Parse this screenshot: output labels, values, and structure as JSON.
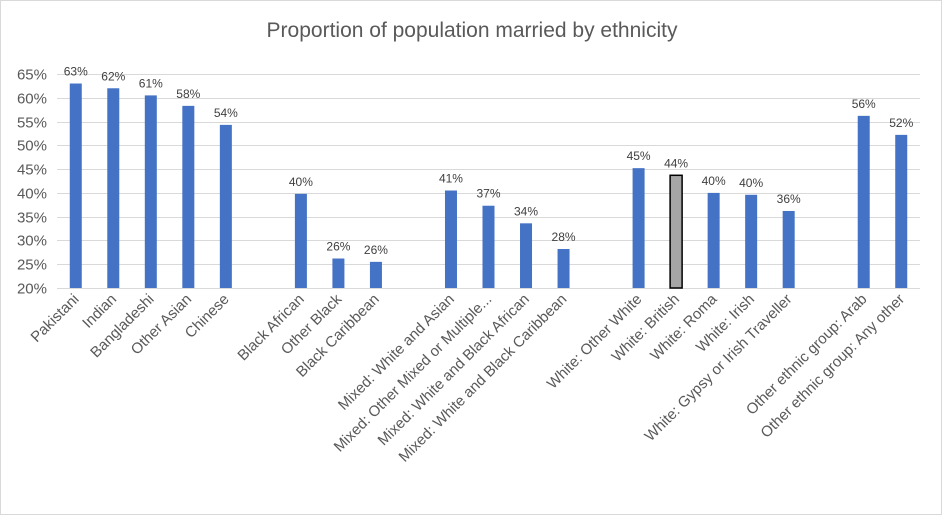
{
  "chart_data": {
    "type": "bar",
    "title": "Proportion of population married by ethnicity",
    "xlabel": "",
    "ylabel": "",
    "ylim": [
      0.2,
      0.65
    ],
    "ytick_values": [
      0.2,
      0.25,
      0.3,
      0.35,
      0.4,
      0.45,
      0.5,
      0.55,
      0.6,
      0.65
    ],
    "ytick_labels": [
      "20%",
      "25%",
      "30%",
      "35%",
      "40%",
      "45%",
      "50%",
      "55%",
      "60%",
      "65%"
    ],
    "grid": true,
    "legend": "none",
    "categories": [
      "Pakistani",
      "Indian",
      "Bangladeshi",
      "Other Asian",
      "Chinese",
      "",
      "Black African",
      "Other Black",
      "Black Caribbean",
      "",
      "Mixed: White and Asian",
      "Mixed: Other Mixed or Multiple...",
      "Mixed: White and Black African",
      "Mixed: White and Black Caribbean",
      "",
      "White: Other White",
      "White: British",
      "White: Roma",
      "White: Irish",
      "White: Gypsy or Irish Traveller",
      "",
      "Other ethnic group: Arab",
      "Other ethnic group: Any other"
    ],
    "values": [
      0.63,
      0.62,
      0.605,
      0.583,
      0.543,
      null,
      0.398,
      0.262,
      0.255,
      null,
      0.405,
      0.373,
      0.336,
      0.282,
      null,
      0.452,
      0.437,
      0.4,
      0.396,
      0.362,
      null,
      0.562,
      0.522
    ],
    "data_labels": [
      "63%",
      "62%",
      "61%",
      "58%",
      "54%",
      "",
      "40%",
      "26%",
      "26%",
      "",
      "41%",
      "37%",
      "34%",
      "28%",
      "",
      "45%",
      "44%",
      "40%",
      "40%",
      "36%",
      "",
      "56%",
      "52%"
    ],
    "highlight_category": "White: British",
    "colors": {
      "bar": "#4472c4",
      "highlight": "#a6a6a6",
      "highlight_outline": "#000000",
      "grid": "#d9d9d9",
      "text": "#595959",
      "label": "#404040"
    }
  }
}
